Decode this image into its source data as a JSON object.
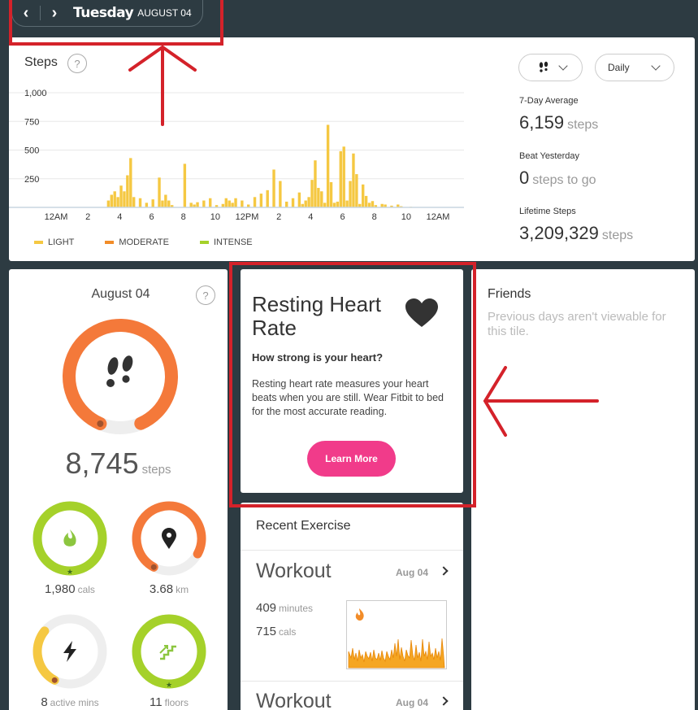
{
  "date_nav": {
    "day": "Tuesday",
    "date": "AUGUST 04",
    "prev_icon": "chevron-left-icon",
    "next_icon": "chevron-right-icon"
  },
  "steps": {
    "title": "Steps",
    "help": "?",
    "mode_select": {
      "icon": "footsteps-icon"
    },
    "period_select": {
      "value": "Daily"
    },
    "stats": {
      "avg_label": "7-Day Average",
      "avg_value": "6,159",
      "avg_unit": "steps",
      "yesterday_label": "Beat Yesterday",
      "yesterday_value": "0",
      "yesterday_unit": "steps to go",
      "lifetime_label": "Lifetime Steps",
      "lifetime_value": "3,209,329",
      "lifetime_unit": "steps"
    },
    "legend": [
      {
        "label": "LIGHT",
        "color": "#f5c842"
      },
      {
        "label": "MODERATE",
        "color": "#f28c28"
      },
      {
        "label": "INTENSE",
        "color": "#a5d12a"
      }
    ]
  },
  "chart_data": {
    "type": "bar",
    "title": "Steps",
    "yticks": [
      "1,000",
      "750",
      "500",
      "250"
    ],
    "ytick_values": [
      1000,
      750,
      500,
      250
    ],
    "ylim": [
      0,
      1000
    ],
    "xticks": [
      "12AM",
      "2",
      "4",
      "6",
      "8",
      "10",
      "12PM",
      "2",
      "4",
      "6",
      "8",
      "10",
      "12AM"
    ],
    "x_range_hours": [
      0,
      24
    ],
    "grid": true,
    "series": [
      {
        "name": "LIGHT",
        "hours": [
          3.2,
          3.4,
          3.6,
          3.8,
          4.0,
          4.2,
          4.4,
          4.6,
          4.8,
          5.2,
          5.6,
          6.0,
          6.4,
          6.6,
          6.8,
          7.0,
          7.2,
          8.0,
          8.4,
          8.6,
          8.8,
          9.2,
          9.6,
          10.0,
          10.4,
          10.6,
          10.8,
          11.0,
          11.2,
          11.6,
          12.0,
          12.4,
          12.8,
          13.2,
          13.6,
          14.0,
          14.4,
          14.8,
          15.2,
          15.4,
          15.6,
          15.8,
          16.0,
          16.2,
          16.4,
          16.6,
          16.8,
          17.0,
          17.2,
          17.4,
          17.6,
          17.8,
          18.0,
          18.2,
          18.4,
          18.6,
          18.8,
          19.0,
          19.2,
          19.4,
          19.6,
          19.8,
          20.0,
          20.4,
          20.6,
          21.0,
          21.4,
          21.6,
          22.2
        ],
        "values": [
          60,
          110,
          140,
          90,
          190,
          140,
          280,
          430,
          90,
          80,
          40,
          70,
          260,
          60,
          110,
          60,
          20,
          380,
          40,
          25,
          45,
          60,
          80,
          20,
          30,
          80,
          60,
          40,
          80,
          60,
          25,
          90,
          120,
          150,
          330,
          230,
          50,
          80,
          130,
          30,
          60,
          90,
          240,
          410,
          170,
          140,
          40,
          720,
          220,
          40,
          50,
          490,
          530,
          60,
          230,
          470,
          290,
          30,
          200,
          100,
          40,
          55,
          20,
          30,
          25,
          15,
          25,
          10,
          5
        ]
      },
      {
        "name": "MODERATE",
        "hours": [],
        "values": []
      },
      {
        "name": "INTENSE",
        "hours": [],
        "values": []
      }
    ]
  },
  "summary": {
    "date": "August 04",
    "help": "?",
    "steps_value": "8,745",
    "steps_unit": "steps",
    "steps_progress": 0.87,
    "rings": [
      {
        "icon": "flame-icon",
        "value": "1,980",
        "unit": "cals",
        "progress": 1.0,
        "color": "#a5d12a"
      },
      {
        "icon": "location-pin-icon",
        "value": "3.68",
        "unit": "km",
        "progress": 0.75,
        "color": "#f4793a"
      },
      {
        "icon": "lightning-icon",
        "value": "8",
        "unit": "active mins",
        "progress": 0.28,
        "color": "#f5c842"
      },
      {
        "icon": "stairs-icon",
        "value": "11",
        "unit": "floors",
        "progress": 1.0,
        "color": "#a5d12a"
      }
    ]
  },
  "heart_rate": {
    "title": "Resting Heart Rate",
    "icon": "heart-icon",
    "subtitle": "How strong is your heart?",
    "description": "Resting heart rate measures your heart beats when you are still. Wear Fitbit to bed for the most accurate reading.",
    "button": "Learn More"
  },
  "recent_exercise": {
    "title": "Recent Exercise",
    "items": [
      {
        "name": "Workout",
        "date": "Aug 04",
        "minutes": "409",
        "minutes_unit": "minutes",
        "cals": "715",
        "cals_unit": "cals"
      },
      {
        "name": "Workout",
        "date": "Aug 04"
      }
    ]
  },
  "friends": {
    "title": "Friends",
    "message": "Previous days aren't viewable for this tile."
  }
}
